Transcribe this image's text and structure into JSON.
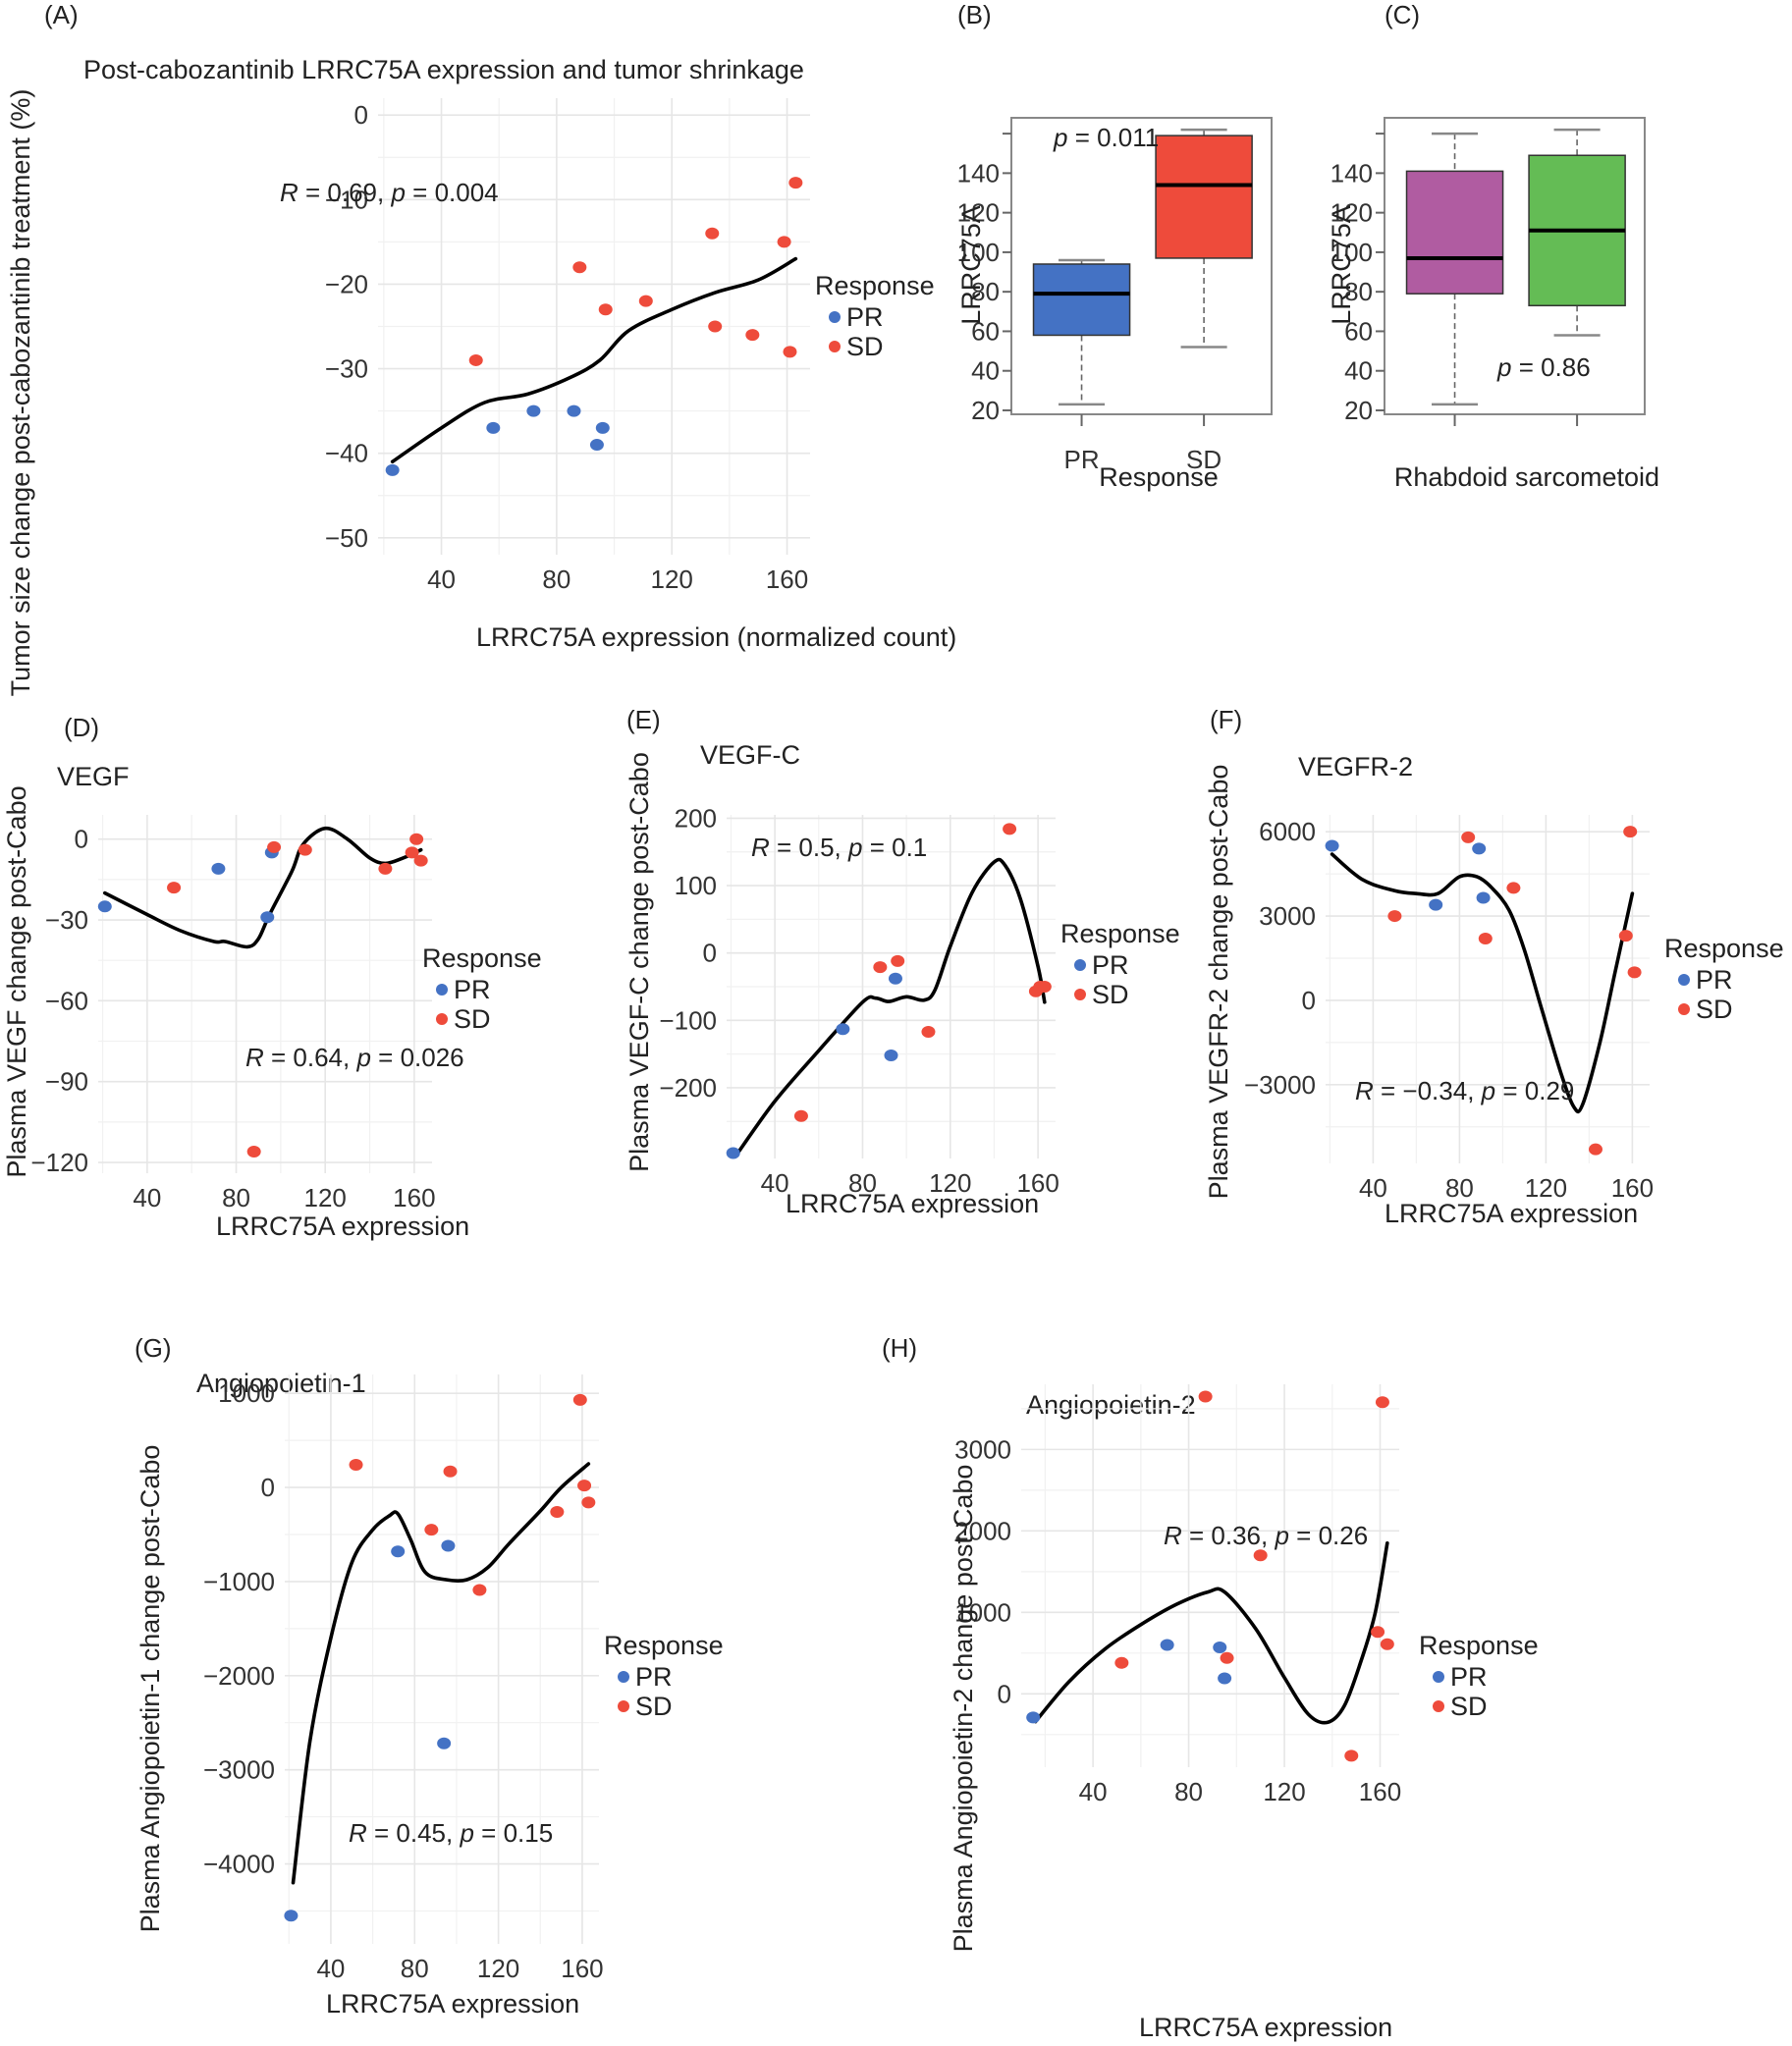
{
  "colors": {
    "PR": "#4472c4",
    "SD": "#ee4b3b",
    "rhabdoid": "#b05ca1",
    "sarcomatoid": "#64bc55",
    "smooth": "#000000"
  },
  "legend": {
    "title": "Response",
    "items": [
      "PR",
      "SD"
    ]
  },
  "chart_data": [
    {
      "id": "A",
      "panel_label": "(A)",
      "type": "scatter",
      "title": "Post-cabozantinib LRRC75A expression and tumor shrinkage",
      "xlabel": "LRRC75A expression (normalized count)",
      "ylabel": "Tumor size change post-cabozantinib treatment (%)",
      "xlim": [
        18,
        168
      ],
      "ylim": [
        -52,
        2
      ],
      "xticks": [
        40,
        80,
        120,
        160
      ],
      "yticks": [
        0,
        -10,
        -20,
        -30,
        -40,
        -50
      ],
      "ytick_labels": [
        "0",
        "−10",
        "−20",
        "−30",
        "−40",
        "−50"
      ],
      "annotation": {
        "R": "0.69",
        "p": "0.004"
      },
      "legend": true,
      "series": [
        {
          "name": "PR",
          "points": [
            [
              23,
              -42
            ],
            [
              58,
              -37
            ],
            [
              72,
              -35
            ],
            [
              86,
              -35
            ],
            [
              94,
              -39
            ],
            [
              96,
              -37
            ]
          ]
        },
        {
          "name": "SD",
          "points": [
            [
              52,
              -29
            ],
            [
              88,
              -18
            ],
            [
              97,
              -23
            ],
            [
              111,
              -22
            ],
            [
              134,
              -14
            ],
            [
              135,
              -25
            ],
            [
              148,
              -26
            ],
            [
              159,
              -15
            ],
            [
              161,
              -28
            ],
            [
              163,
              -8
            ]
          ]
        }
      ],
      "smooth": [
        [
          23,
          -41
        ],
        [
          40,
          -37
        ],
        [
          55,
          -34
        ],
        [
          70,
          -33
        ],
        [
          85,
          -31
        ],
        [
          95,
          -29
        ],
        [
          105,
          -25.5
        ],
        [
          120,
          -23
        ],
        [
          135,
          -21
        ],
        [
          150,
          -19.5
        ],
        [
          163,
          -17
        ]
      ]
    },
    {
      "id": "B",
      "panel_label": "(B)",
      "type": "box",
      "xlabel": "Response",
      "ylabel": "LRRC75A",
      "ylim": [
        18,
        168
      ],
      "yticks": [
        20,
        40,
        60,
        80,
        100,
        120,
        140
      ],
      "annotation": {
        "p": "0.011"
      },
      "categories": [
        "PR",
        "SD"
      ],
      "boxes": [
        {
          "name": "PR",
          "whisker_low": 23,
          "q1": 58,
          "median": 79,
          "q3": 94,
          "whisker_high": 96,
          "color_key": "PR"
        },
        {
          "name": "SD",
          "whisker_low": 52,
          "q1": 97,
          "median": 134,
          "q3": 159,
          "whisker_high": 162,
          "color_key": "SD"
        }
      ]
    },
    {
      "id": "C",
      "panel_label": "(C)",
      "type": "box",
      "xlabel": "Rhabdoid sarcometoid",
      "ylabel": "LRRC75A",
      "ylim": [
        18,
        168
      ],
      "yticks": [
        20,
        40,
        60,
        80,
        100,
        120,
        140
      ],
      "annotation": {
        "p": "0.86"
      },
      "categories": [
        "",
        ""
      ],
      "boxes": [
        {
          "name": "Rhabdoid",
          "whisker_low": 23,
          "q1": 79,
          "median": 97,
          "q3": 141,
          "whisker_high": 160,
          "color_key": "rhabdoid"
        },
        {
          "name": "Sarcomatoid",
          "whisker_low": 58,
          "q1": 73,
          "median": 111,
          "q3": 149,
          "whisker_high": 162,
          "color_key": "sarcomatoid"
        }
      ]
    },
    {
      "id": "D",
      "panel_label": "(D)",
      "type": "scatter",
      "title": "VEGF",
      "xlabel": "LRRC75A expression",
      "ylabel": "Plasma VEGF change post-Cabo",
      "xlim": [
        18,
        168
      ],
      "ylim": [
        -124,
        9
      ],
      "xticks": [
        40,
        80,
        120,
        160
      ],
      "yticks": [
        0,
        -30,
        -60,
        -90,
        -120
      ],
      "ytick_labels": [
        "0",
        "−30",
        "−60",
        "−90",
        "−120"
      ],
      "annotation": {
        "R": "0.64",
        "p": "0.026"
      },
      "legend": true,
      "series": [
        {
          "name": "PR",
          "points": [
            [
              21,
              -25
            ],
            [
              72,
              -11
            ],
            [
              94,
              -29
            ],
            [
              96,
              -5
            ]
          ]
        },
        {
          "name": "SD",
          "points": [
            [
              52,
              -18
            ],
            [
              88,
              -116
            ],
            [
              97,
              -3
            ],
            [
              111,
              -4
            ],
            [
              147,
              -11
            ],
            [
              159,
              -5
            ],
            [
              161,
              0
            ],
            [
              163,
              -8
            ]
          ]
        }
      ],
      "smooth": [
        [
          21,
          -20
        ],
        [
          40,
          -28
        ],
        [
          55,
          -34
        ],
        [
          70,
          -38
        ],
        [
          75,
          -38
        ],
        [
          85,
          -40
        ],
        [
          90,
          -37
        ],
        [
          95,
          -28
        ],
        [
          105,
          -12
        ],
        [
          110,
          -2
        ],
        [
          120,
          4
        ],
        [
          130,
          0
        ],
        [
          140,
          -7
        ],
        [
          147,
          -9
        ],
        [
          155,
          -7
        ],
        [
          163,
          -4
        ]
      ]
    },
    {
      "id": "E",
      "panel_label": "(E)",
      "type": "scatter",
      "title": "VEGF-C",
      "xlabel": "LRRC75A expression",
      "ylabel": "Plasma VEGF-C change post-Cabo",
      "xlim": [
        18,
        168
      ],
      "ylim": [
        -305,
        205
      ],
      "xticks": [
        40,
        80,
        120,
        160
      ],
      "yticks": [
        200,
        100,
        0,
        -100,
        -200
      ],
      "ytick_labels": [
        "200",
        "100",
        "0",
        "−100",
        "−200"
      ],
      "annotation": {
        "R": "0.5",
        "p": "0.1"
      },
      "legend": true,
      "series": [
        {
          "name": "PR",
          "points": [
            [
              21,
              -297
            ],
            [
              71,
              -113
            ],
            [
              93,
              -152
            ],
            [
              95,
              -38
            ]
          ]
        },
        {
          "name": "SD",
          "points": [
            [
              52,
              -242
            ],
            [
              88,
              -21
            ],
            [
              96,
              -12
            ],
            [
              110,
              -117
            ],
            [
              147,
              184
            ],
            [
              159,
              -57
            ],
            [
              161,
              -50
            ],
            [
              163,
              -50
            ]
          ]
        }
      ],
      "smooth": [
        [
          22,
          -302
        ],
        [
          40,
          -220
        ],
        [
          60,
          -145
        ],
        [
          80,
          -73
        ],
        [
          86,
          -67
        ],
        [
          92,
          -72
        ],
        [
          100,
          -65
        ],
        [
          108,
          -70
        ],
        [
          113,
          -55
        ],
        [
          120,
          10
        ],
        [
          130,
          90
        ],
        [
          140,
          135
        ],
        [
          145,
          130
        ],
        [
          152,
          80
        ],
        [
          160,
          -20
        ],
        [
          163,
          -73
        ]
      ]
    },
    {
      "id": "F",
      "panel_label": "(F)",
      "type": "scatter",
      "title": "VEGFR-2",
      "xlabel": "LRRC75A expression",
      "ylabel": "Plasma VEGFR-2 change post-Cabo",
      "xlim": [
        18,
        168
      ],
      "ylim": [
        -5800,
        6600
      ],
      "xticks": [
        40,
        80,
        120,
        160
      ],
      "yticks": [
        6000,
        3000,
        0,
        -3000
      ],
      "ytick_labels": [
        "6000",
        "3000",
        "0",
        "−3000"
      ],
      "annotation": {
        "R": "−0.34",
        "p": "0.29"
      },
      "legend": true,
      "series": [
        {
          "name": "PR",
          "points": [
            [
              21,
              5500
            ],
            [
              69,
              3400
            ],
            [
              89,
              5400
            ],
            [
              91,
              3650
            ]
          ]
        },
        {
          "name": "SD",
          "points": [
            [
              50,
              3000
            ],
            [
              84,
              5800
            ],
            [
              92,
              2200
            ],
            [
              105,
              4000
            ],
            [
              143,
              -5300
            ],
            [
              157,
              2300
            ],
            [
              159,
              6000
            ],
            [
              161,
              1000
            ]
          ]
        }
      ],
      "smooth": [
        [
          21,
          5200
        ],
        [
          35,
          4300
        ],
        [
          50,
          3900
        ],
        [
          60,
          3800
        ],
        [
          70,
          3800
        ],
        [
          80,
          4400
        ],
        [
          88,
          4400
        ],
        [
          95,
          4000
        ],
        [
          103,
          3200
        ],
        [
          110,
          1800
        ],
        [
          118,
          -300
        ],
        [
          127,
          -2600
        ],
        [
          133,
          -3800
        ],
        [
          137,
          -3700
        ],
        [
          145,
          -1500
        ],
        [
          152,
          1000
        ],
        [
          160,
          3800
        ]
      ]
    },
    {
      "id": "G",
      "panel_label": "(G)",
      "type": "scatter",
      "title": "Angiopoietin-1",
      "xlabel": "LRRC75A expression",
      "ylabel": "Plasma Angiopoietin-1 change post-Cabo",
      "xlim": [
        18,
        168
      ],
      "ylim": [
        -4850,
        1200
      ],
      "xticks": [
        40,
        80,
        120,
        160
      ],
      "yticks": [
        1000,
        0,
        -1000,
        -2000,
        -3000,
        -4000
      ],
      "ytick_labels": [
        "1000",
        "0",
        "−1000",
        "−2000",
        "−3000",
        "−4000"
      ],
      "annotation": {
        "R": "0.45",
        "p": "0.15"
      },
      "legend": true,
      "series": [
        {
          "name": "PR",
          "points": [
            [
              21,
              -4550
            ],
            [
              72,
              -680
            ],
            [
              94,
              -2720
            ],
            [
              96,
              -620
            ]
          ]
        },
        {
          "name": "SD",
          "points": [
            [
              52,
              240
            ],
            [
              88,
              -450
            ],
            [
              97,
              170
            ],
            [
              111,
              -1090
            ],
            [
              148,
              -260
            ],
            [
              159,
              930
            ],
            [
              161,
              20
            ],
            [
              163,
              -160
            ]
          ]
        }
      ],
      "smooth": [
        [
          22,
          -4200
        ],
        [
          30,
          -2700
        ],
        [
          40,
          -1600
        ],
        [
          50,
          -800
        ],
        [
          60,
          -450
        ],
        [
          68,
          -300
        ],
        [
          72,
          -280
        ],
        [
          78,
          -550
        ],
        [
          85,
          -900
        ],
        [
          95,
          -980
        ],
        [
          105,
          -980
        ],
        [
          115,
          -850
        ],
        [
          125,
          -600
        ],
        [
          140,
          -250
        ],
        [
          150,
          0
        ],
        [
          163,
          250
        ]
      ]
    },
    {
      "id": "H",
      "panel_label": "(H)",
      "type": "scatter",
      "title": "Angiopoietin-2",
      "xlabel": "LRRC75A expression",
      "ylabel": "Plasma Angiopoietin-2 change post-Cabo",
      "xlim": [
        10,
        168
      ],
      "ylim": [
        -900,
        3800
      ],
      "xticks": [
        40,
        80,
        120,
        160
      ],
      "yticks": [
        3000,
        2000,
        1000,
        0
      ],
      "ytick_labels": [
        "3000",
        "2000",
        "1000",
        "0"
      ],
      "annotation": {
        "R": "0.36",
        "p": "0.26"
      },
      "legend": true,
      "series": [
        {
          "name": "PR",
          "points": [
            [
              15,
              -290
            ],
            [
              71,
              600
            ],
            [
              93,
              570
            ],
            [
              95,
              190
            ]
          ]
        },
        {
          "name": "SD",
          "points": [
            [
              52,
              380
            ],
            [
              87,
              3650
            ],
            [
              96,
              440
            ],
            [
              110,
              1700
            ],
            [
              148,
              -760
            ],
            [
              159,
              760
            ],
            [
              161,
              3580
            ],
            [
              163,
              610
            ]
          ]
        }
      ],
      "smooth": [
        [
          16,
          -340
        ],
        [
          30,
          150
        ],
        [
          45,
          550
        ],
        [
          60,
          850
        ],
        [
          75,
          1100
        ],
        [
          88,
          1250
        ],
        [
          95,
          1250
        ],
        [
          108,
          800
        ],
        [
          120,
          200
        ],
        [
          130,
          -250
        ],
        [
          138,
          -350
        ],
        [
          145,
          -150
        ],
        [
          152,
          400
        ],
        [
          158,
          1000
        ],
        [
          163,
          1850
        ]
      ]
    }
  ]
}
